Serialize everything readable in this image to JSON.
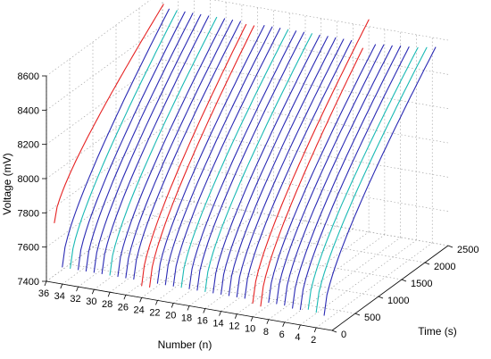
{
  "chart_data": {
    "type": "line",
    "projection": "3d",
    "title": "",
    "xlabel": "Number (n)",
    "ylabel": "Time (s)",
    "zlabel": "Voltage (mV)",
    "x_ticks": [
      "2",
      "4",
      "6",
      "8",
      "10",
      "12",
      "14",
      "16",
      "18",
      "20",
      "22",
      "24",
      "26",
      "28",
      "30",
      "32",
      "34",
      "36"
    ],
    "y_ticks": [
      "0",
      "500",
      "1000",
      "1500",
      "2000",
      "2500"
    ],
    "z_ticks": [
      "7400",
      "7600",
      "7800",
      "8000",
      "8200",
      "8400",
      "8600"
    ],
    "xlim": [
      0,
      36
    ],
    "ylim": [
      0,
      2500
    ],
    "zlim": [
      7400,
      8600
    ],
    "grid": true,
    "colors": {
      "normal": "#2a2ab4",
      "cyan": "#19b9b4",
      "red": "#e62323"
    },
    "series_note_color_groups": {
      "red": [
        9,
        10,
        23,
        24,
        35
      ],
      "cyan": [
        2,
        3,
        16,
        19,
        28,
        33
      ]
    },
    "series": [
      {
        "n": 1,
        "color": "normal",
        "t_start": 0,
        "t_end": 2400,
        "v_start": 7480,
        "v_end": 8570
      },
      {
        "n": 2,
        "color": "cyan",
        "t_start": 0,
        "t_end": 2380,
        "v_start": 7490,
        "v_end": 8565
      },
      {
        "n": 3,
        "color": "cyan",
        "t_start": 0,
        "t_end": 2360,
        "v_start": 7500,
        "v_end": 8560
      },
      {
        "n": 4,
        "color": "normal",
        "t_start": 0,
        "t_end": 2340,
        "v_start": 7490,
        "v_end": 8560
      },
      {
        "n": 5,
        "color": "normal",
        "t_start": 0,
        "t_end": 2330,
        "v_start": 7490,
        "v_end": 8560
      },
      {
        "n": 6,
        "color": "normal",
        "t_start": 0,
        "t_end": 2320,
        "v_start": 7500,
        "v_end": 8555
      },
      {
        "n": 7,
        "color": "normal",
        "t_start": 0,
        "t_end": 2310,
        "v_start": 7500,
        "v_end": 8555
      },
      {
        "n": 8,
        "color": "normal",
        "t_start": 0,
        "t_end": 2300,
        "v_start": 7500,
        "v_end": 8550
      },
      {
        "n": 9,
        "color": "red",
        "t_start": 0,
        "t_end": 2200,
        "v_start": 7470,
        "v_end": 8540
      },
      {
        "n": 10,
        "color": "red",
        "t_start": 0,
        "t_end": 2500,
        "v_start": 7480,
        "v_end": 8640
      },
      {
        "n": 11,
        "color": "normal",
        "t_start": 0,
        "t_end": 2300,
        "v_start": 7500,
        "v_end": 8550
      },
      {
        "n": 12,
        "color": "normal",
        "t_start": 0,
        "t_end": 2300,
        "v_start": 7500,
        "v_end": 8550
      },
      {
        "n": 13,
        "color": "normal",
        "t_start": 0,
        "t_end": 2300,
        "v_start": 7500,
        "v_end": 8550
      },
      {
        "n": 14,
        "color": "normal",
        "t_start": 0,
        "t_end": 2300,
        "v_start": 7500,
        "v_end": 8550
      },
      {
        "n": 15,
        "color": "normal",
        "t_start": 0,
        "t_end": 2300,
        "v_start": 7500,
        "v_end": 8550
      },
      {
        "n": 16,
        "color": "cyan",
        "t_start": 0,
        "t_end": 2300,
        "v_start": 7500,
        "v_end": 8550
      },
      {
        "n": 17,
        "color": "normal",
        "t_start": 0,
        "t_end": 2300,
        "v_start": 7500,
        "v_end": 8550
      },
      {
        "n": 18,
        "color": "normal",
        "t_start": 0,
        "t_end": 2300,
        "v_start": 7500,
        "v_end": 8550
      },
      {
        "n": 19,
        "color": "cyan",
        "t_start": 0,
        "t_end": 2300,
        "v_start": 7500,
        "v_end": 8550
      },
      {
        "n": 20,
        "color": "normal",
        "t_start": 0,
        "t_end": 2300,
        "v_start": 7500,
        "v_end": 8550
      },
      {
        "n": 21,
        "color": "normal",
        "t_start": 0,
        "t_end": 2300,
        "v_start": 7500,
        "v_end": 8550
      },
      {
        "n": 22,
        "color": "normal",
        "t_start": 0,
        "t_end": 2300,
        "v_start": 7500,
        "v_end": 8550
      },
      {
        "n": 23,
        "color": "red",
        "t_start": 0,
        "t_end": 2250,
        "v_start": 7470,
        "v_end": 8550
      },
      {
        "n": 24,
        "color": "red",
        "t_start": 0,
        "t_end": 2250,
        "v_start": 7470,
        "v_end": 8550
      },
      {
        "n": 25,
        "color": "normal",
        "t_start": 0,
        "t_end": 2300,
        "v_start": 7500,
        "v_end": 8550
      },
      {
        "n": 26,
        "color": "normal",
        "t_start": 0,
        "t_end": 2300,
        "v_start": 7500,
        "v_end": 8550
      },
      {
        "n": 27,
        "color": "normal",
        "t_start": 0,
        "t_end": 2300,
        "v_start": 7500,
        "v_end": 8550
      },
      {
        "n": 28,
        "color": "cyan",
        "t_start": 0,
        "t_end": 2300,
        "v_start": 7500,
        "v_end": 8550
      },
      {
        "n": 29,
        "color": "normal",
        "t_start": 0,
        "t_end": 2300,
        "v_start": 7500,
        "v_end": 8550
      },
      {
        "n": 30,
        "color": "normal",
        "t_start": 0,
        "t_end": 2300,
        "v_start": 7500,
        "v_end": 8550
      },
      {
        "n": 31,
        "color": "normal",
        "t_start": 0,
        "t_end": 2300,
        "v_start": 7500,
        "v_end": 8550
      },
      {
        "n": 32,
        "color": "normal",
        "t_start": 0,
        "t_end": 2300,
        "v_start": 7500,
        "v_end": 8550
      },
      {
        "n": 33,
        "color": "cyan",
        "t_start": 0,
        "t_end": 2300,
        "v_start": 7500,
        "v_end": 8550
      },
      {
        "n": 34,
        "color": "normal",
        "t_start": 0,
        "t_end": 2300,
        "v_start": 7500,
        "v_end": 8550
      },
      {
        "n": 35,
        "color": "red",
        "t_start": 0,
        "t_end": 2350,
        "v_start": 7750,
        "v_end": 8560
      }
    ]
  }
}
